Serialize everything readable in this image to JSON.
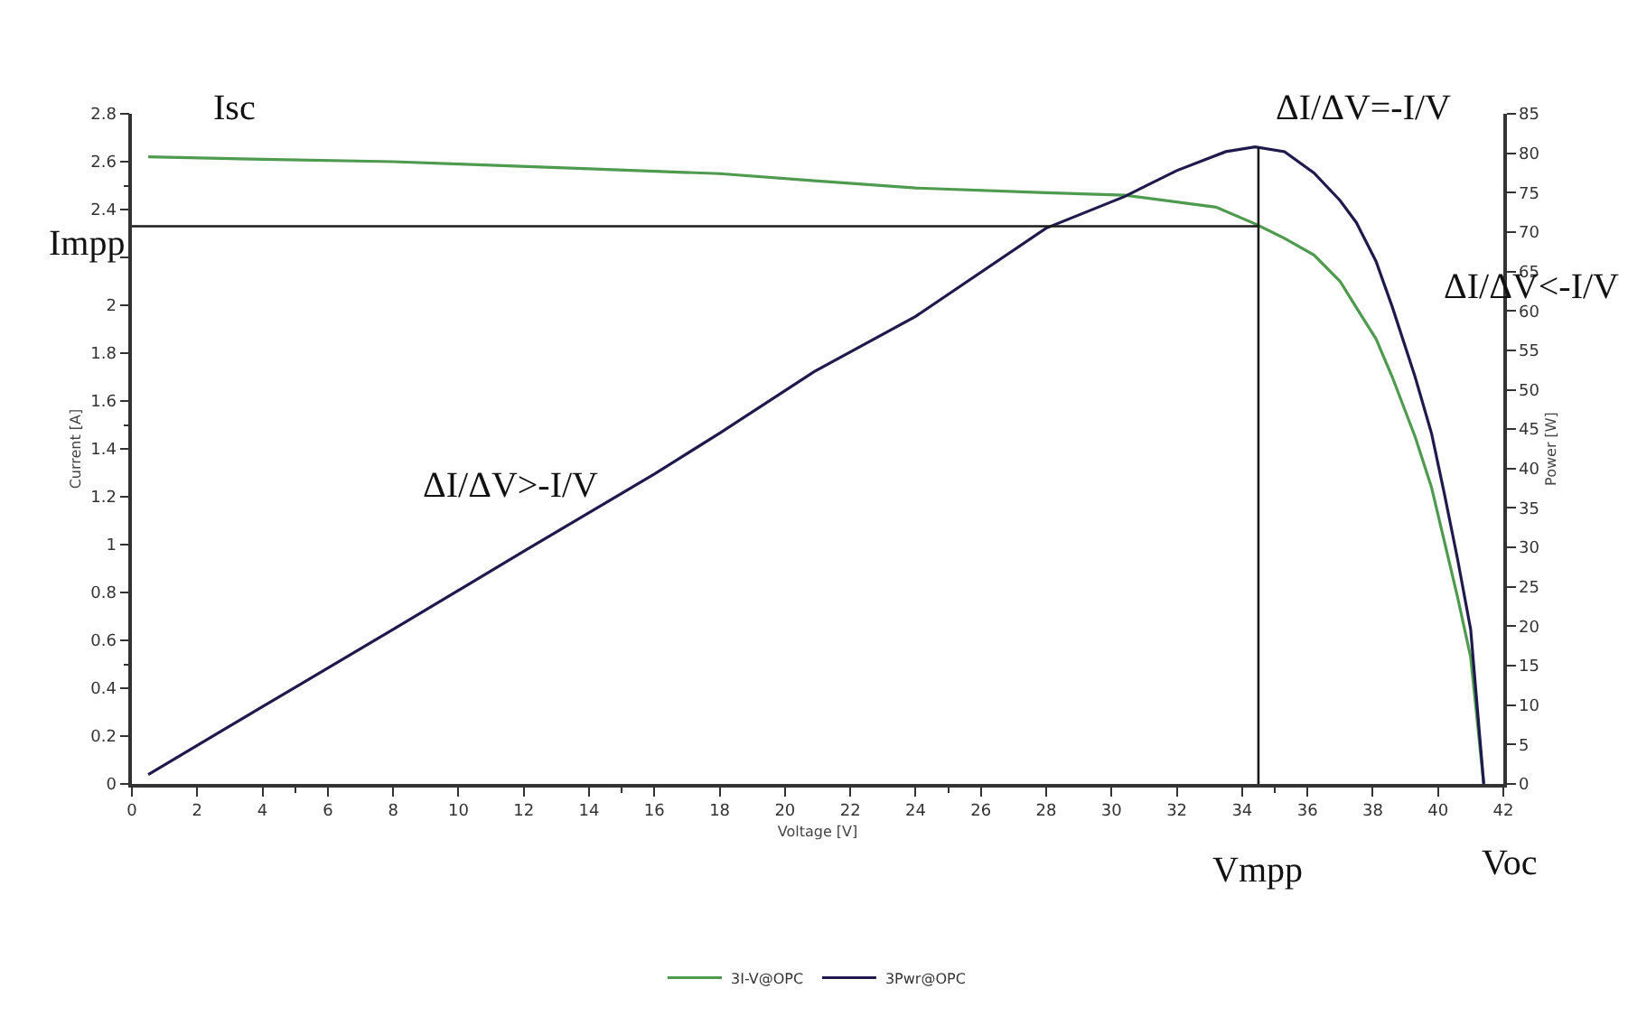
{
  "chart_data": {
    "type": "line",
    "xlabel": "Voltage [V]",
    "ylabel": "Current [A]",
    "y2label": "Power [W]",
    "xlim": [
      0,
      42
    ],
    "xticks": [
      0,
      2,
      4,
      6,
      8,
      10,
      12,
      14,
      16,
      18,
      20,
      22,
      24,
      26,
      28,
      30,
      32,
      34,
      36,
      38,
      40,
      42
    ],
    "ylim": [
      0,
      2.8
    ],
    "yticks": [
      0,
      0.2,
      0.4,
      0.6,
      0.8,
      1,
      1.2,
      1.4,
      1.6,
      1.8,
      2,
      {
        "value": 2.2,
        "label": null
      },
      2.4,
      2.6,
      2.8
    ],
    "y2lim": [
      0,
      85
    ],
    "y2ticks": [
      0,
      5,
      10,
      15,
      20,
      25,
      30,
      35,
      40,
      45,
      50,
      55,
      60,
      65,
      70,
      75,
      80,
      85
    ],
    "grid": false,
    "legend": "bottom",
    "marker": "none",
    "line_style": "solid",
    "series": [
      {
        "name": "3I-V@OPC",
        "color": "#4e9a4e",
        "x": [
          0.5,
          4,
          8,
          10,
          14,
          18,
          20.9,
          24,
          28,
          30.4,
          33.2,
          34.4,
          35.3,
          36.2,
          37,
          37.5,
          38.1,
          38.6,
          39.3,
          39.8,
          40.2,
          40.6,
          41,
          41.4
        ],
        "values": [
          2.62,
          2.61,
          2.6,
          2.59,
          2.57,
          2.55,
          2.52,
          2.49,
          2.47,
          2.46,
          2.41,
          2.34,
          2.28,
          2.21,
          2.1,
          1.99,
          1.86,
          1.7,
          1.45,
          1.24,
          1.01,
          0.78,
          0.53,
          0
        ]
      },
      {
        "name": "3Pwr@OPC",
        "color": "#1f1a4e",
        "axis": "y2",
        "x": [
          0.5,
          4,
          8,
          12,
          16,
          18,
          20.9,
          24,
          28,
          30.4,
          32,
          33.5,
          34.4,
          35.3,
          36.2,
          37,
          37.5,
          38.1,
          38.6,
          39.3,
          39.8,
          40.2,
          40.6,
          41,
          41.4
        ],
        "values": [
          1.2,
          9.8,
          19.6,
          29.5,
          39.3,
          44.5,
          52.3,
          59.3,
          70.5,
          74.5,
          77.8,
          80.2,
          80.8,
          80.2,
          77.5,
          74,
          71.2,
          66.3,
          60.5,
          51.6,
          44.5,
          36.7,
          28.5,
          19.6,
          0
        ]
      }
    ],
    "ref_lines": [
      {
        "axis": "y",
        "value": 2.33,
        "label": "Impp",
        "color": "#1a1a1a"
      },
      {
        "axis": "x",
        "value": 34.5,
        "label": "Vmpp",
        "color": "#1a1a1a"
      }
    ],
    "annotations": [
      "Isc",
      "ΔI/ΔV=-I/V",
      "ΔI/ΔV<-I/V",
      "ΔI/ΔV>-I/V",
      "Voc"
    ]
  }
}
